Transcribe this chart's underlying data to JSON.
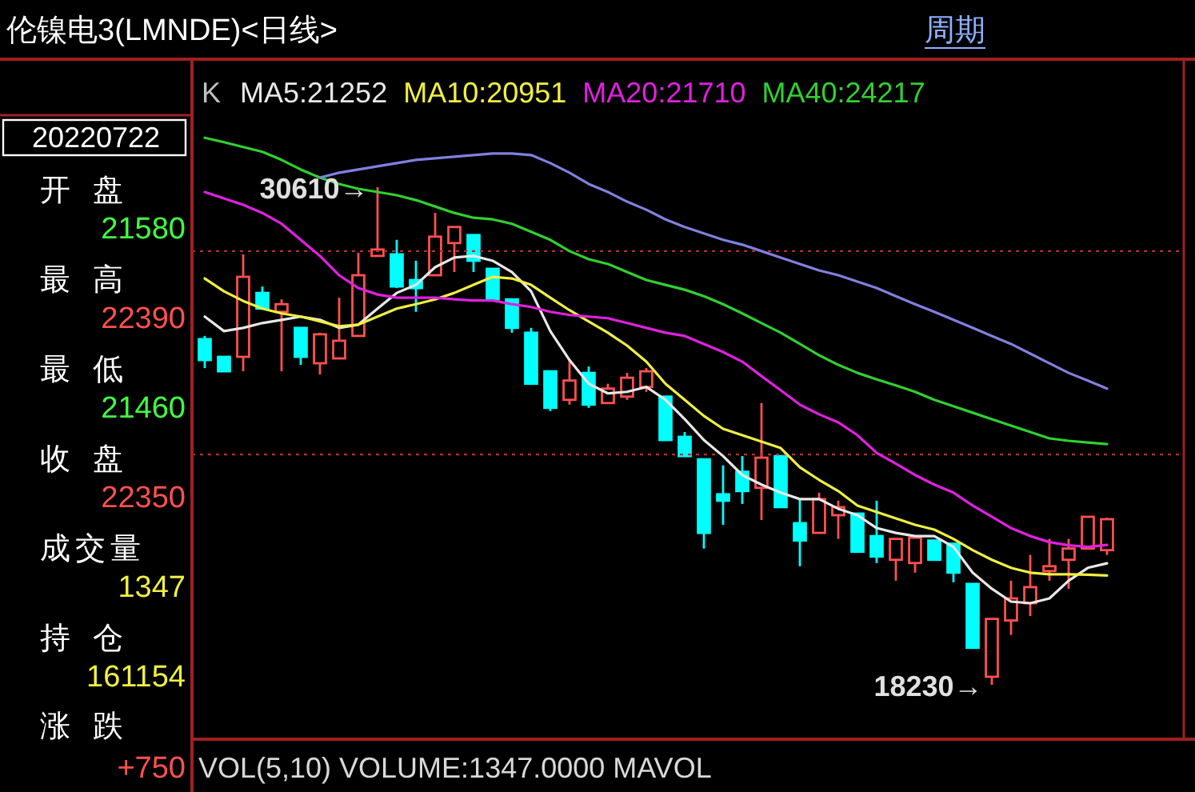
{
  "chart_data": {
    "type": "candlestick",
    "title": "伦镍电3(LMNDE)<日线>",
    "legend_title": "K",
    "legend": "top",
    "categories": [
      null,
      null,
      null,
      null,
      null,
      null,
      null,
      null,
      null,
      null,
      null,
      null,
      null,
      null,
      null,
      null,
      null,
      null,
      null,
      null,
      null,
      null,
      null,
      null,
      null,
      null,
      null,
      null,
      null,
      null,
      null,
      null,
      null,
      null,
      null,
      null,
      null,
      null,
      null,
      null,
      null,
      null,
      null,
      null,
      null,
      null,
      null,
      null
    ],
    "ohlc": [
      [
        26830,
        26910,
        26110,
        26310
      ],
      [
        26390,
        26390,
        26030,
        26030
      ],
      [
        26390,
        28940,
        26030,
        28380
      ],
      [
        27980,
        28140,
        27590,
        27590
      ],
      [
        27510,
        27820,
        26030,
        27700
      ],
      [
        27110,
        27110,
        26190,
        26390
      ],
      [
        26230,
        26990,
        25950,
        26950
      ],
      [
        26350,
        27860,
        26350,
        26790
      ],
      [
        26910,
        28980,
        26910,
        28420
      ],
      [
        28900,
        30610,
        28900,
        29060
      ],
      [
        28940,
        29300,
        28100,
        28140
      ],
      [
        28300,
        28780,
        27510,
        28100
      ],
      [
        28420,
        29970,
        28420,
        29380
      ],
      [
        29220,
        29620,
        28500,
        29620
      ],
      [
        29420,
        29420,
        28500,
        28780
      ],
      [
        28580,
        28580,
        27820,
        27820
      ],
      [
        27820,
        27820,
        26990,
        27110
      ],
      [
        26990,
        27110,
        25720,
        25720
      ],
      [
        26030,
        26030,
        25040,
        25120
      ],
      [
        25320,
        26310,
        25200,
        25800
      ],
      [
        25990,
        26150,
        25120,
        25200
      ],
      [
        25240,
        25720,
        25240,
        25600
      ],
      [
        25400,
        25990,
        25320,
        25870
      ],
      [
        25640,
        26110,
        25520,
        26030
      ],
      [
        25400,
        25400,
        24320,
        24320
      ],
      [
        24400,
        24520,
        23920,
        23920
      ],
      [
        23840,
        23840,
        21620,
        22010
      ],
      [
        22970,
        23690,
        22210,
        22810
      ],
      [
        23530,
        23920,
        22730,
        23050
      ],
      [
        23130,
        25240,
        22330,
        23880
      ],
      [
        23920,
        23920,
        22650,
        22650
      ],
      [
        22250,
        22850,
        21180,
        21820
      ],
      [
        22010,
        23010,
        22010,
        22850
      ],
      [
        22450,
        22810,
        21860,
        22650
      ],
      [
        22490,
        22490,
        21540,
        21540
      ],
      [
        21930,
        22810,
        21260,
        21420
      ],
      [
        21340,
        21860,
        20820,
        21860
      ],
      [
        21260,
        21890,
        21020,
        21890
      ],
      [
        21820,
        21820,
        21340,
        21340
      ],
      [
        21740,
        21740,
        20780,
        21020
      ],
      [
        20740,
        20740,
        19150,
        19150
      ],
      [
        18430,
        19870,
        18230,
        19870
      ],
      [
        19830,
        20820,
        19470,
        20380
      ],
      [
        20260,
        21460,
        19940,
        20660
      ],
      [
        21060,
        21860,
        20820,
        21180
      ],
      [
        21340,
        21860,
        20620,
        21620
      ],
      [
        21620,
        22410,
        21620,
        22410
      ],
      [
        21580,
        22390,
        21460,
        22350
      ]
    ],
    "colors": [
      "#00ffff",
      "#00ffff",
      "#ff5050",
      "#00ffff",
      "#ff5050",
      "#00ffff",
      "#ff5050",
      "#ff5050",
      "#ff5050",
      "#ff5050",
      "#00ffff",
      "#00ffff",
      "#ff5050",
      "#ff5050",
      "#00ffff",
      "#00ffff",
      "#00ffff",
      "#00ffff",
      "#00ffff",
      "#ff5050",
      "#00ffff",
      "#ff5050",
      "#ff5050",
      "#ff5050",
      "#00ffff",
      "#00ffff",
      "#00ffff",
      "#00ffff",
      "#00ffff",
      "#ff5050",
      "#00ffff",
      "#00ffff",
      "#ff5050",
      "#ff5050",
      "#00ffff",
      "#00ffff",
      "#ff5050",
      "#ff5050",
      "#00ffff",
      "#00ffff",
      "#00ffff",
      "#ff5050",
      "#ff5050",
      "#ff5050",
      "#ff5050",
      "#ff5050",
      "#ff5050",
      "#ff5050"
    ],
    "series": [
      {
        "name": "MA5:21252",
        "type": "line",
        "color": "#e8e8e8",
        "values": [
          27390,
          27030,
          27110,
          27230,
          27310,
          27390,
          27310,
          27110,
          27190,
          27590,
          27980,
          28180,
          28620,
          28860,
          28900,
          28780,
          28500,
          28020,
          27030,
          26310,
          25720,
          25480,
          25520,
          25640,
          25320,
          24840,
          24320,
          23920,
          23450,
          23210,
          23010,
          22850,
          22850,
          22610,
          22450,
          22130,
          22010,
          21930,
          21930,
          21660,
          21020,
          20620,
          20300,
          20260,
          20380,
          20820,
          21140,
          21252
        ]
      },
      {
        "name": "MA10:20951",
        "type": "line",
        "color": "#f0f040",
        "values": [
          28340,
          28020,
          27780,
          27590,
          27470,
          27390,
          27270,
          27150,
          27190,
          27390,
          27590,
          27700,
          27820,
          27980,
          28180,
          28380,
          28340,
          28180,
          27860,
          27550,
          27270,
          26990,
          26670,
          26270,
          25720,
          25320,
          24920,
          24600,
          24440,
          24280,
          24120,
          23640,
          23330,
          23050,
          22690,
          22530,
          22370,
          22210,
          22090,
          21860,
          21580,
          21340,
          21140,
          21020,
          20980,
          20980,
          20970,
          20951
        ]
      },
      {
        "name": "MA20:21710",
        "type": "line",
        "color": "#e020e0",
        "values": [
          30490,
          30330,
          30170,
          29970,
          29700,
          29300,
          28900,
          28420,
          28100,
          27940,
          27860,
          27860,
          27860,
          27820,
          27790,
          27790,
          27700,
          27630,
          27510,
          27430,
          27390,
          27350,
          27230,
          27110,
          26990,
          26910,
          26710,
          26510,
          26270,
          25910,
          25560,
          25200,
          24960,
          24760,
          24440,
          24000,
          23730,
          23450,
          23210,
          23010,
          22690,
          22410,
          22130,
          21930,
          21780,
          21700,
          21660,
          21710
        ]
      },
      {
        "name": "MA40:24217",
        "type": "line",
        "color": "#30d030",
        "values": [
          31840,
          31730,
          31610,
          31490,
          31290,
          31050,
          30850,
          30690,
          30570,
          30490,
          30410,
          30290,
          30130,
          29970,
          29850,
          29810,
          29700,
          29500,
          29300,
          29020,
          28820,
          28700,
          28500,
          28300,
          28180,
          28060,
          27900,
          27700,
          27470,
          27230,
          26990,
          26710,
          26430,
          26190,
          25990,
          25830,
          25680,
          25520,
          25320,
          25160,
          25000,
          24840,
          24680,
          24520,
          24360,
          24300,
          24260,
          24217
        ]
      },
      {
        "type": "line",
        "color": "#8080e0",
        "values": [
          null,
          null,
          null,
          null,
          null,
          null,
          30850,
          30970,
          31050,
          31130,
          31210,
          31290,
          31330,
          31370,
          31410,
          31450,
          31450,
          31410,
          31210,
          30970,
          30690,
          30490,
          30250,
          30050,
          29810,
          29620,
          29460,
          29300,
          29180,
          29020,
          28860,
          28700,
          28540,
          28420,
          28260,
          28100,
          27900,
          27700,
          27510,
          27310,
          27110,
          26910,
          26710,
          26470,
          26230,
          25990,
          25800,
          25600
        ]
      }
    ],
    "ref_lines": [
      {
        "axis": "y",
        "value": 29020,
        "color": "#b03030",
        "line_style": "dotted"
      },
      {
        "axis": "y",
        "value": 23960,
        "color": "#b03030",
        "line_style": "dotted"
      }
    ],
    "annotations": [
      "30610→",
      "18230→",
      "周期",
      "20220722",
      "开盘",
      "21580",
      "最高",
      "22390",
      "最低",
      "21460",
      "收盘",
      "22350",
      "成交量",
      "1347",
      "持仓",
      "161154",
      "涨跌",
      "+750",
      "VOL(5,10) VOLUME:1347.0000 MAVOL"
    ]
  }
}
